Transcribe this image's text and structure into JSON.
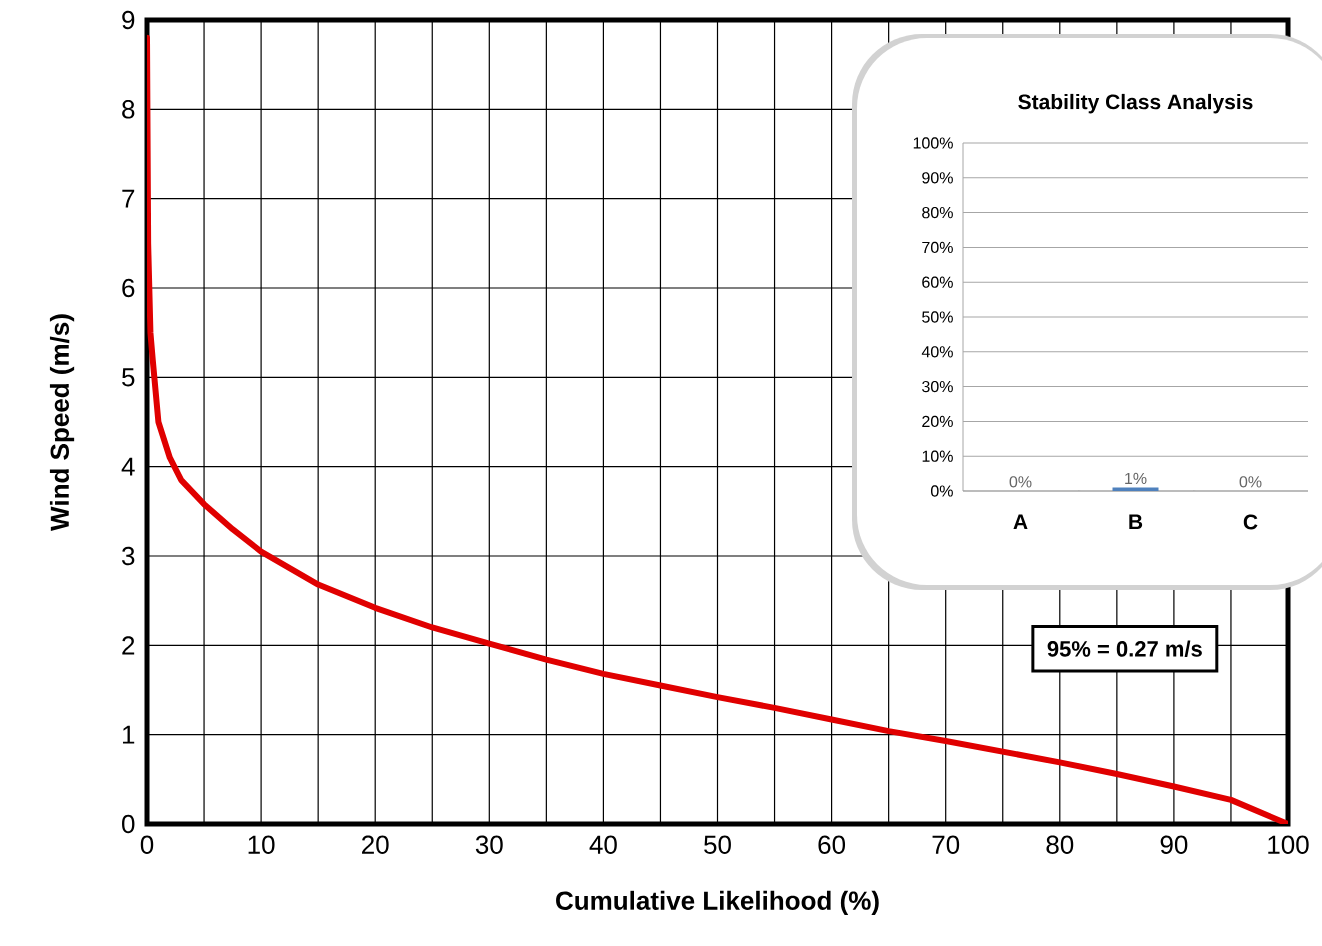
{
  "chart_data": [
    {
      "type": "line",
      "xlabel": "Cumulative Likelihood (%)",
      "ylabel": "Wind Speed (m/s)",
      "x": [
        0,
        0.1,
        0.3,
        0.5,
        1,
        2,
        3,
        5,
        7.5,
        10,
        15,
        20,
        25,
        30,
        35,
        40,
        45,
        50,
        55,
        60,
        65,
        70,
        75,
        80,
        85,
        90,
        95,
        100
      ],
      "series": [
        {
          "color": "#e00000",
          "values": [
            8.8,
            6.5,
            5.5,
            5.2,
            4.5,
            4.1,
            3.85,
            3.58,
            3.3,
            3.05,
            2.68,
            2.42,
            2.2,
            2.02,
            1.84,
            1.68,
            1.55,
            1.42,
            1.3,
            1.17,
            1.04,
            0.93,
            0.81,
            0.69,
            0.56,
            0.42,
            0.27,
            0
          ]
        }
      ],
      "xlim": [
        0,
        100
      ],
      "ylim": [
        0,
        9
      ],
      "xticks": [
        0,
        {
          "value": 5,
          "label": null
        },
        10,
        {
          "value": 15,
          "label": null
        },
        20,
        {
          "value": 25,
          "label": null
        },
        30,
        {
          "value": 35,
          "label": null
        },
        40,
        {
          "value": 45,
          "label": null
        },
        50,
        {
          "value": 55,
          "label": null
        },
        60,
        {
          "value": 65,
          "label": null
        },
        70,
        {
          "value": 75,
          "label": null
        },
        80,
        {
          "value": 85,
          "label": null
        },
        90,
        {
          "value": 95,
          "label": null
        },
        100
      ],
      "yticks": [
        0,
        1,
        2,
        3,
        4,
        5,
        6,
        7,
        8,
        9
      ],
      "grid": true,
      "line_style": "solid",
      "annotations": [
        "95% = 0.27 m/s"
      ]
    },
    {
      "type": "bar",
      "title": "Stability Class Analysis",
      "categories": [
        "A",
        "B",
        "C"
      ],
      "values": [
        0,
        1,
        0
      ],
      "color": "#4f81bd",
      "value_labels": [
        "0%",
        "1%",
        "0%"
      ],
      "ylim": [
        0,
        100
      ],
      "yticks": [
        {
          "value": 0,
          "label": "0%"
        },
        {
          "value": 10,
          "label": "10%"
        },
        {
          "value": 20,
          "label": "20%"
        },
        {
          "value": 30,
          "label": "30%"
        },
        {
          "value": 40,
          "label": "40%"
        },
        {
          "value": 50,
          "label": "50%"
        },
        {
          "value": 60,
          "label": "60%"
        },
        {
          "value": 70,
          "label": "70%"
        },
        {
          "value": 80,
          "label": "80%"
        },
        {
          "value": 90,
          "label": "90%"
        },
        {
          "value": 100,
          "label": "100%"
        }
      ],
      "grid": "y"
    }
  ]
}
